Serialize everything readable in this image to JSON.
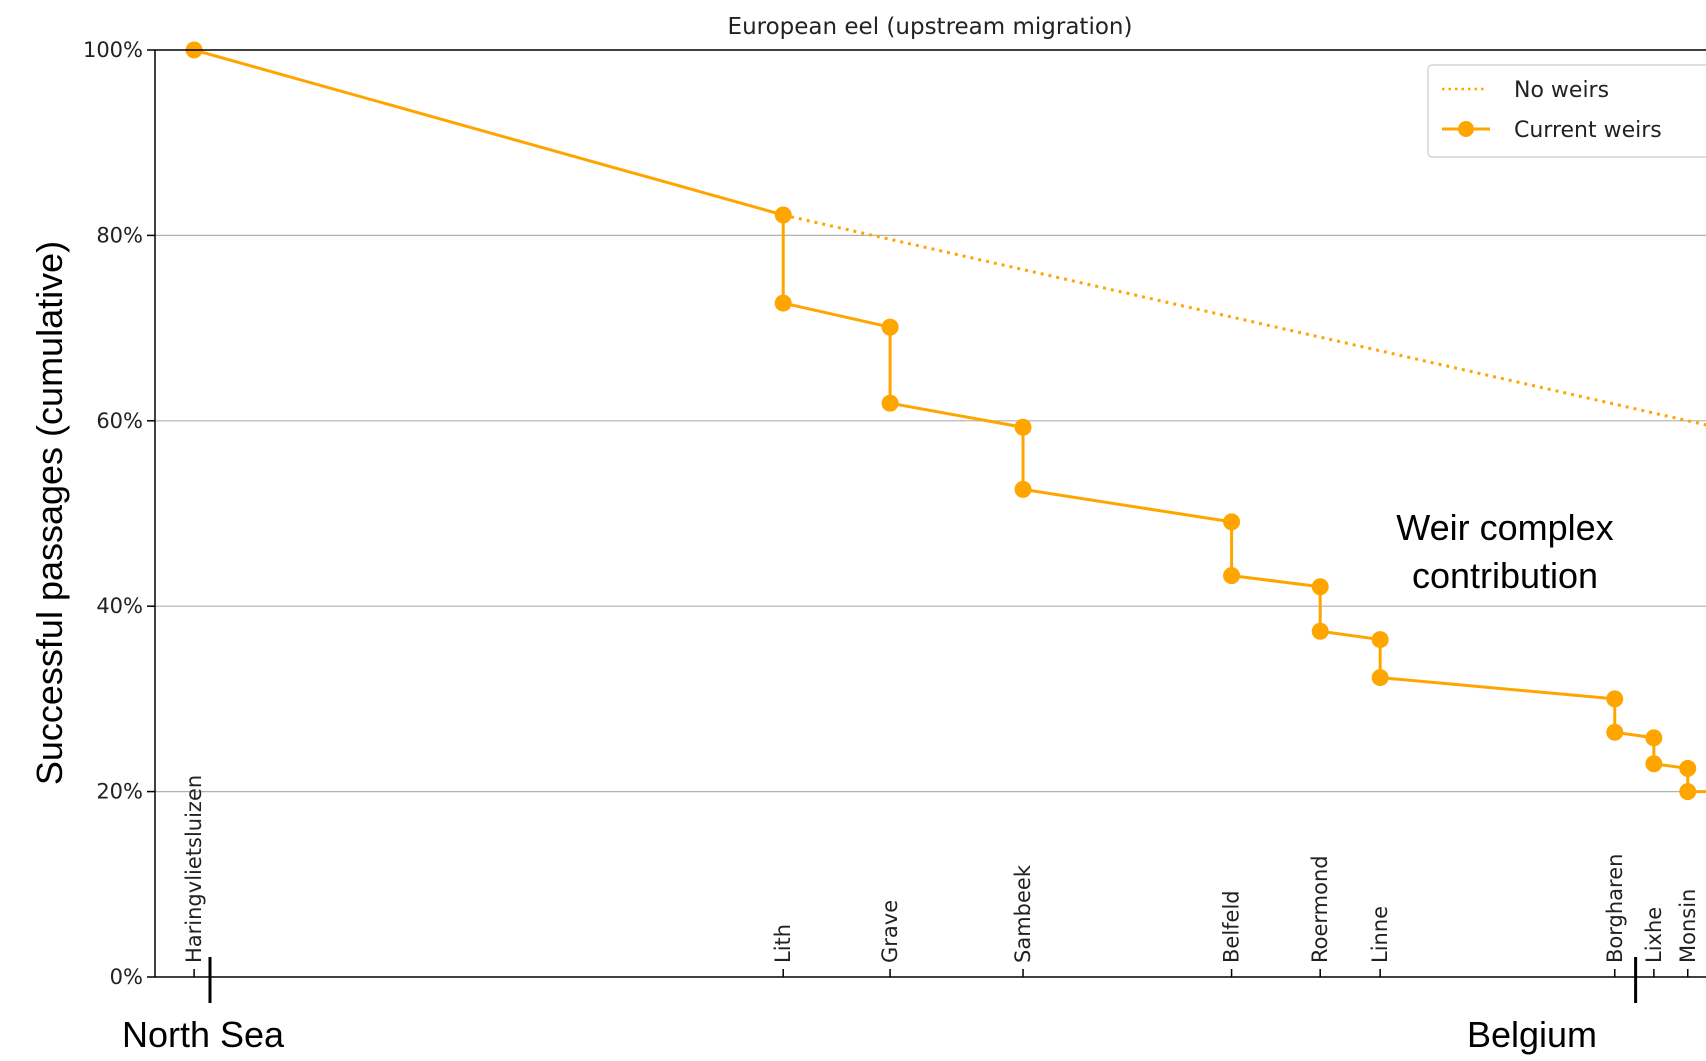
{
  "chart_data": {
    "type": "line",
    "title": "European eel (upstream migration)",
    "xlabel": "",
    "ylabel": "Successful passages (cumulative)",
    "ylim": [
      0,
      100
    ],
    "y_ticks": [
      0,
      20,
      40,
      60,
      80,
      100
    ],
    "y_tick_labels": [
      "0%",
      "20%",
      "40%",
      "60%",
      "80%",
      "100%"
    ],
    "grid": "horizontal",
    "legend_position": "top-right",
    "color": "#FFA500",
    "x_range": [
      -1.5,
      58.0
    ],
    "weirs": [
      {
        "name": "Haringvlietsluizen",
        "x": 0.0
      },
      {
        "name": "Lith",
        "x": 22.6
      },
      {
        "name": "Grave",
        "x": 26.7
      },
      {
        "name": "Sambeek",
        "x": 31.8
      },
      {
        "name": "Belfeld",
        "x": 39.8
      },
      {
        "name": "Roermond",
        "x": 43.2
      },
      {
        "name": "Linne",
        "x": 45.5
      },
      {
        "name": "Borgharen",
        "x": 54.5
      },
      {
        "name": "Lixhe",
        "x": 56.0
      },
      {
        "name": "Monsin",
        "x": 57.3
      }
    ],
    "series": [
      {
        "name": "No weirs",
        "style": "dotted",
        "x": [
          22.6,
          58.4
        ],
        "y": [
          82.2,
          59.3
        ]
      },
      {
        "name": "Current weirs",
        "style": "solid-markers",
        "x": [
          0.0,
          22.6,
          22.6,
          26.7,
          26.7,
          31.8,
          31.8,
          39.8,
          39.8,
          43.2,
          43.2,
          45.5,
          45.5,
          54.5,
          54.5,
          56.0,
          56.0,
          57.3,
          57.3,
          58.4
        ],
        "y": [
          100.0,
          82.2,
          72.7,
          70.1,
          61.9,
          59.3,
          52.6,
          49.1,
          43.3,
          42.1,
          37.3,
          36.4,
          32.3,
          30.0,
          26.4,
          25.8,
          23.0,
          22.5,
          20.0,
          20.0
        ]
      }
    ],
    "legend": [
      {
        "label": "No weirs",
        "style": "dotted"
      },
      {
        "label": "Current weirs",
        "style": "solid-markers"
      }
    ],
    "annotations": {
      "left_region": "North Sea",
      "right_region": "Belgium",
      "right_region_x": 55.3,
      "arrow_x": 58.4,
      "arrow_from": 59.3,
      "arrow_to": 20.0,
      "arrow_label_1": "Weir complex",
      "arrow_label_2": "contribution"
    }
  }
}
